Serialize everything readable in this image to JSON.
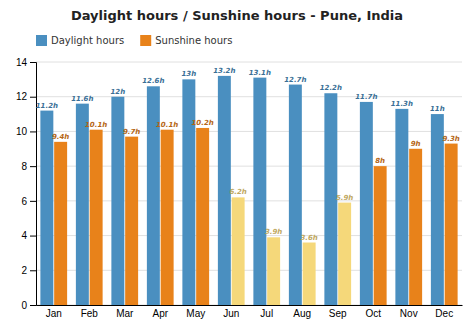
{
  "chart_data": {
    "type": "bar",
    "title": "Daylight hours / Sunshine hours - Pune, India",
    "categories": [
      "Jan",
      "Feb",
      "Mar",
      "Apr",
      "May",
      "Jun",
      "Jul",
      "Aug",
      "Sep",
      "Oct",
      "Nov",
      "Dec"
    ],
    "series": [
      {
        "name": "Daylight hours",
        "color": "#4a8fc0",
        "values": [
          11.2,
          11.6,
          12.0,
          12.6,
          13.0,
          13.2,
          13.1,
          12.7,
          12.2,
          11.7,
          11.3,
          11.0
        ],
        "value_labels": [
          "11.2h",
          "11.6h",
          "12h",
          "12.6h",
          "13h",
          "13.2h",
          "13.1h",
          "12.7h",
          "12.2h",
          "11.7h",
          "11.3h",
          "11h"
        ]
      },
      {
        "name": "Sunshine hours",
        "color": "#e8821a",
        "colors": [
          "#e8821a",
          "#e8821a",
          "#e8821a",
          "#e8821a",
          "#e8821a",
          "#f5d87a",
          "#f5d87a",
          "#f5d87a",
          "#f5d87a",
          "#e8821a",
          "#e8821a",
          "#e8821a"
        ],
        "values": [
          9.4,
          10.1,
          9.7,
          10.1,
          10.2,
          6.2,
          3.9,
          3.6,
          5.9,
          8.0,
          9.0,
          9.3
        ],
        "value_labels": [
          "9.4h",
          "10.1h",
          "9.7h",
          "10.1h",
          "10.2h",
          "6.2h",
          "3.9h",
          "3.6h",
          "5.9h",
          "8h",
          "9h",
          "9.3h"
        ]
      }
    ],
    "ylim": [
      0,
      14
    ],
    "yticks": [
      0,
      2,
      4,
      6,
      8,
      10,
      12,
      14
    ],
    "grid": true,
    "data_labels": true,
    "legend": "top-left"
  }
}
